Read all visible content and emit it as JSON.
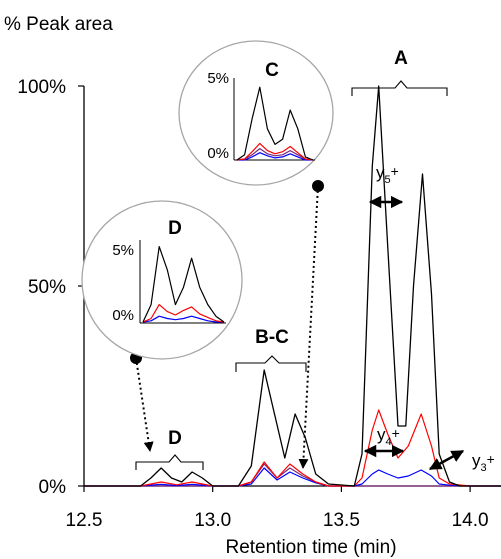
{
  "chart_data": {
    "type": "line",
    "title": "",
    "ylabel": "% Peak area",
    "xlabel": "Retention time (min)",
    "xlim": [
      12.5,
      14.12
    ],
    "ylim": [
      0,
      100
    ],
    "x_ticks": [
      "12.5",
      "13.0",
      "13.5",
      "14.0"
    ],
    "y_ticks": [
      "0%",
      "50%",
      "100%"
    ],
    "colors": {
      "total": "#000000",
      "y5": "#ff0000",
      "y4": "#0000ff",
      "y3": "#7a2a7a"
    },
    "series": [
      {
        "color": "#000000",
        "x": [
          12.5,
          12.72,
          12.76,
          12.8,
          12.84,
          12.88,
          12.92,
          12.96,
          13.0,
          13.1,
          13.15,
          13.2,
          13.24,
          13.28,
          13.32,
          13.36,
          13.4,
          13.45,
          13.55,
          13.58,
          13.62,
          13.645,
          13.68,
          13.72,
          13.75,
          13.78,
          13.815,
          13.85,
          13.88,
          13.92,
          13.96,
          14.0,
          14.12
        ],
        "y": [
          0,
          0,
          2,
          4.5,
          2,
          1,
          3.5,
          2,
          0,
          0,
          5,
          29,
          18,
          7,
          18,
          12,
          3,
          0.5,
          0,
          8,
          80,
          100,
          60,
          15,
          15,
          50,
          78,
          48,
          8,
          1,
          0,
          0,
          0
        ]
      },
      {
        "color": "#ff0000",
        "x": [
          12.5,
          12.72,
          12.8,
          12.86,
          12.92,
          13.0,
          13.1,
          13.15,
          13.2,
          13.25,
          13.3,
          13.35,
          13.4,
          13.45,
          13.55,
          13.58,
          13.62,
          13.645,
          13.68,
          13.72,
          13.76,
          13.81,
          13.85,
          13.88,
          13.92,
          14.0,
          14.12
        ],
        "y": [
          0,
          0,
          1,
          0.3,
          1,
          0,
          0,
          1,
          6,
          2,
          5.5,
          3,
          1,
          0,
          0,
          2,
          14,
          19,
          13,
          7,
          10,
          18,
          10,
          2,
          0.5,
          0,
          0
        ]
      },
      {
        "color": "#0000ff",
        "x": [
          12.5,
          12.72,
          12.8,
          12.86,
          12.92,
          13.0,
          13.1,
          13.15,
          13.2,
          13.25,
          13.3,
          13.35,
          13.4,
          13.45,
          13.55,
          13.58,
          13.62,
          13.645,
          13.68,
          13.72,
          13.76,
          13.81,
          13.85,
          13.88,
          13.92,
          14.0,
          14.12
        ],
        "y": [
          0,
          0,
          0.4,
          0.1,
          0.4,
          0,
          0,
          0.5,
          4.5,
          1.5,
          3.5,
          2,
          0.8,
          0,
          0,
          0.5,
          3,
          4,
          3,
          2,
          2.5,
          4,
          2.5,
          0.5,
          0.2,
          0,
          0
        ]
      },
      {
        "color": "#7a2a7a",
        "x": [
          12.5,
          13.1,
          13.15,
          13.2,
          13.25,
          13.3,
          13.35,
          13.4,
          13.45,
          14.12
        ],
        "y": [
          0,
          0,
          1,
          5.5,
          2,
          4.5,
          2.5,
          1,
          0,
          0
        ]
      }
    ],
    "annotations": {
      "A": "A",
      "BC": "B-C",
      "D": "D",
      "y5": "y",
      "y5_sub": "5",
      "y5_sup": "+",
      "y4": "y",
      "y4_sub": "4",
      "y4_sup": "+",
      "y3": "y",
      "y3_sub": "3",
      "y3_sup": "+"
    },
    "inset_C": {
      "label": "C",
      "y_ticks": [
        "5%",
        "0%"
      ],
      "series": [
        {
          "color": "#000000",
          "values": [
            0,
            0.5,
            4,
            7,
            3,
            1.5,
            2,
            4.8,
            3,
            0.3,
            0
          ]
        },
        {
          "color": "#ff0000",
          "values": [
            0,
            0.1,
            0.8,
            1.6,
            0.9,
            0.6,
            0.8,
            1.3,
            0.7,
            0.1,
            0
          ]
        },
        {
          "color": "#0000ff",
          "values": [
            0,
            0,
            0.3,
            0.7,
            0.4,
            0.2,
            0.3,
            0.6,
            0.3,
            0,
            0
          ]
        },
        {
          "color": "#7a2a7a",
          "values": [
            0,
            0.1,
            0.5,
            1.1,
            0.6,
            0.4,
            0.5,
            0.9,
            0.5,
            0.1,
            0
          ]
        }
      ]
    },
    "inset_D": {
      "label": "D",
      "y_ticks": [
        "5%",
        "0%"
      ],
      "series": [
        {
          "color": "#000000",
          "values": [
            0,
            1.5,
            6.5,
            4.5,
            1.5,
            3,
            5.5,
            3,
            1.5,
            0.5,
            0
          ]
        },
        {
          "color": "#ff0000",
          "values": [
            0,
            0.3,
            1.5,
            0.9,
            0.6,
            1,
            1.3,
            0.7,
            0.4,
            0.1,
            0
          ]
        },
        {
          "color": "#0000ff",
          "values": [
            0,
            0.1,
            0.5,
            0.3,
            0.2,
            0.3,
            0.5,
            0.3,
            0.1,
            0,
            0
          ]
        }
      ]
    }
  }
}
